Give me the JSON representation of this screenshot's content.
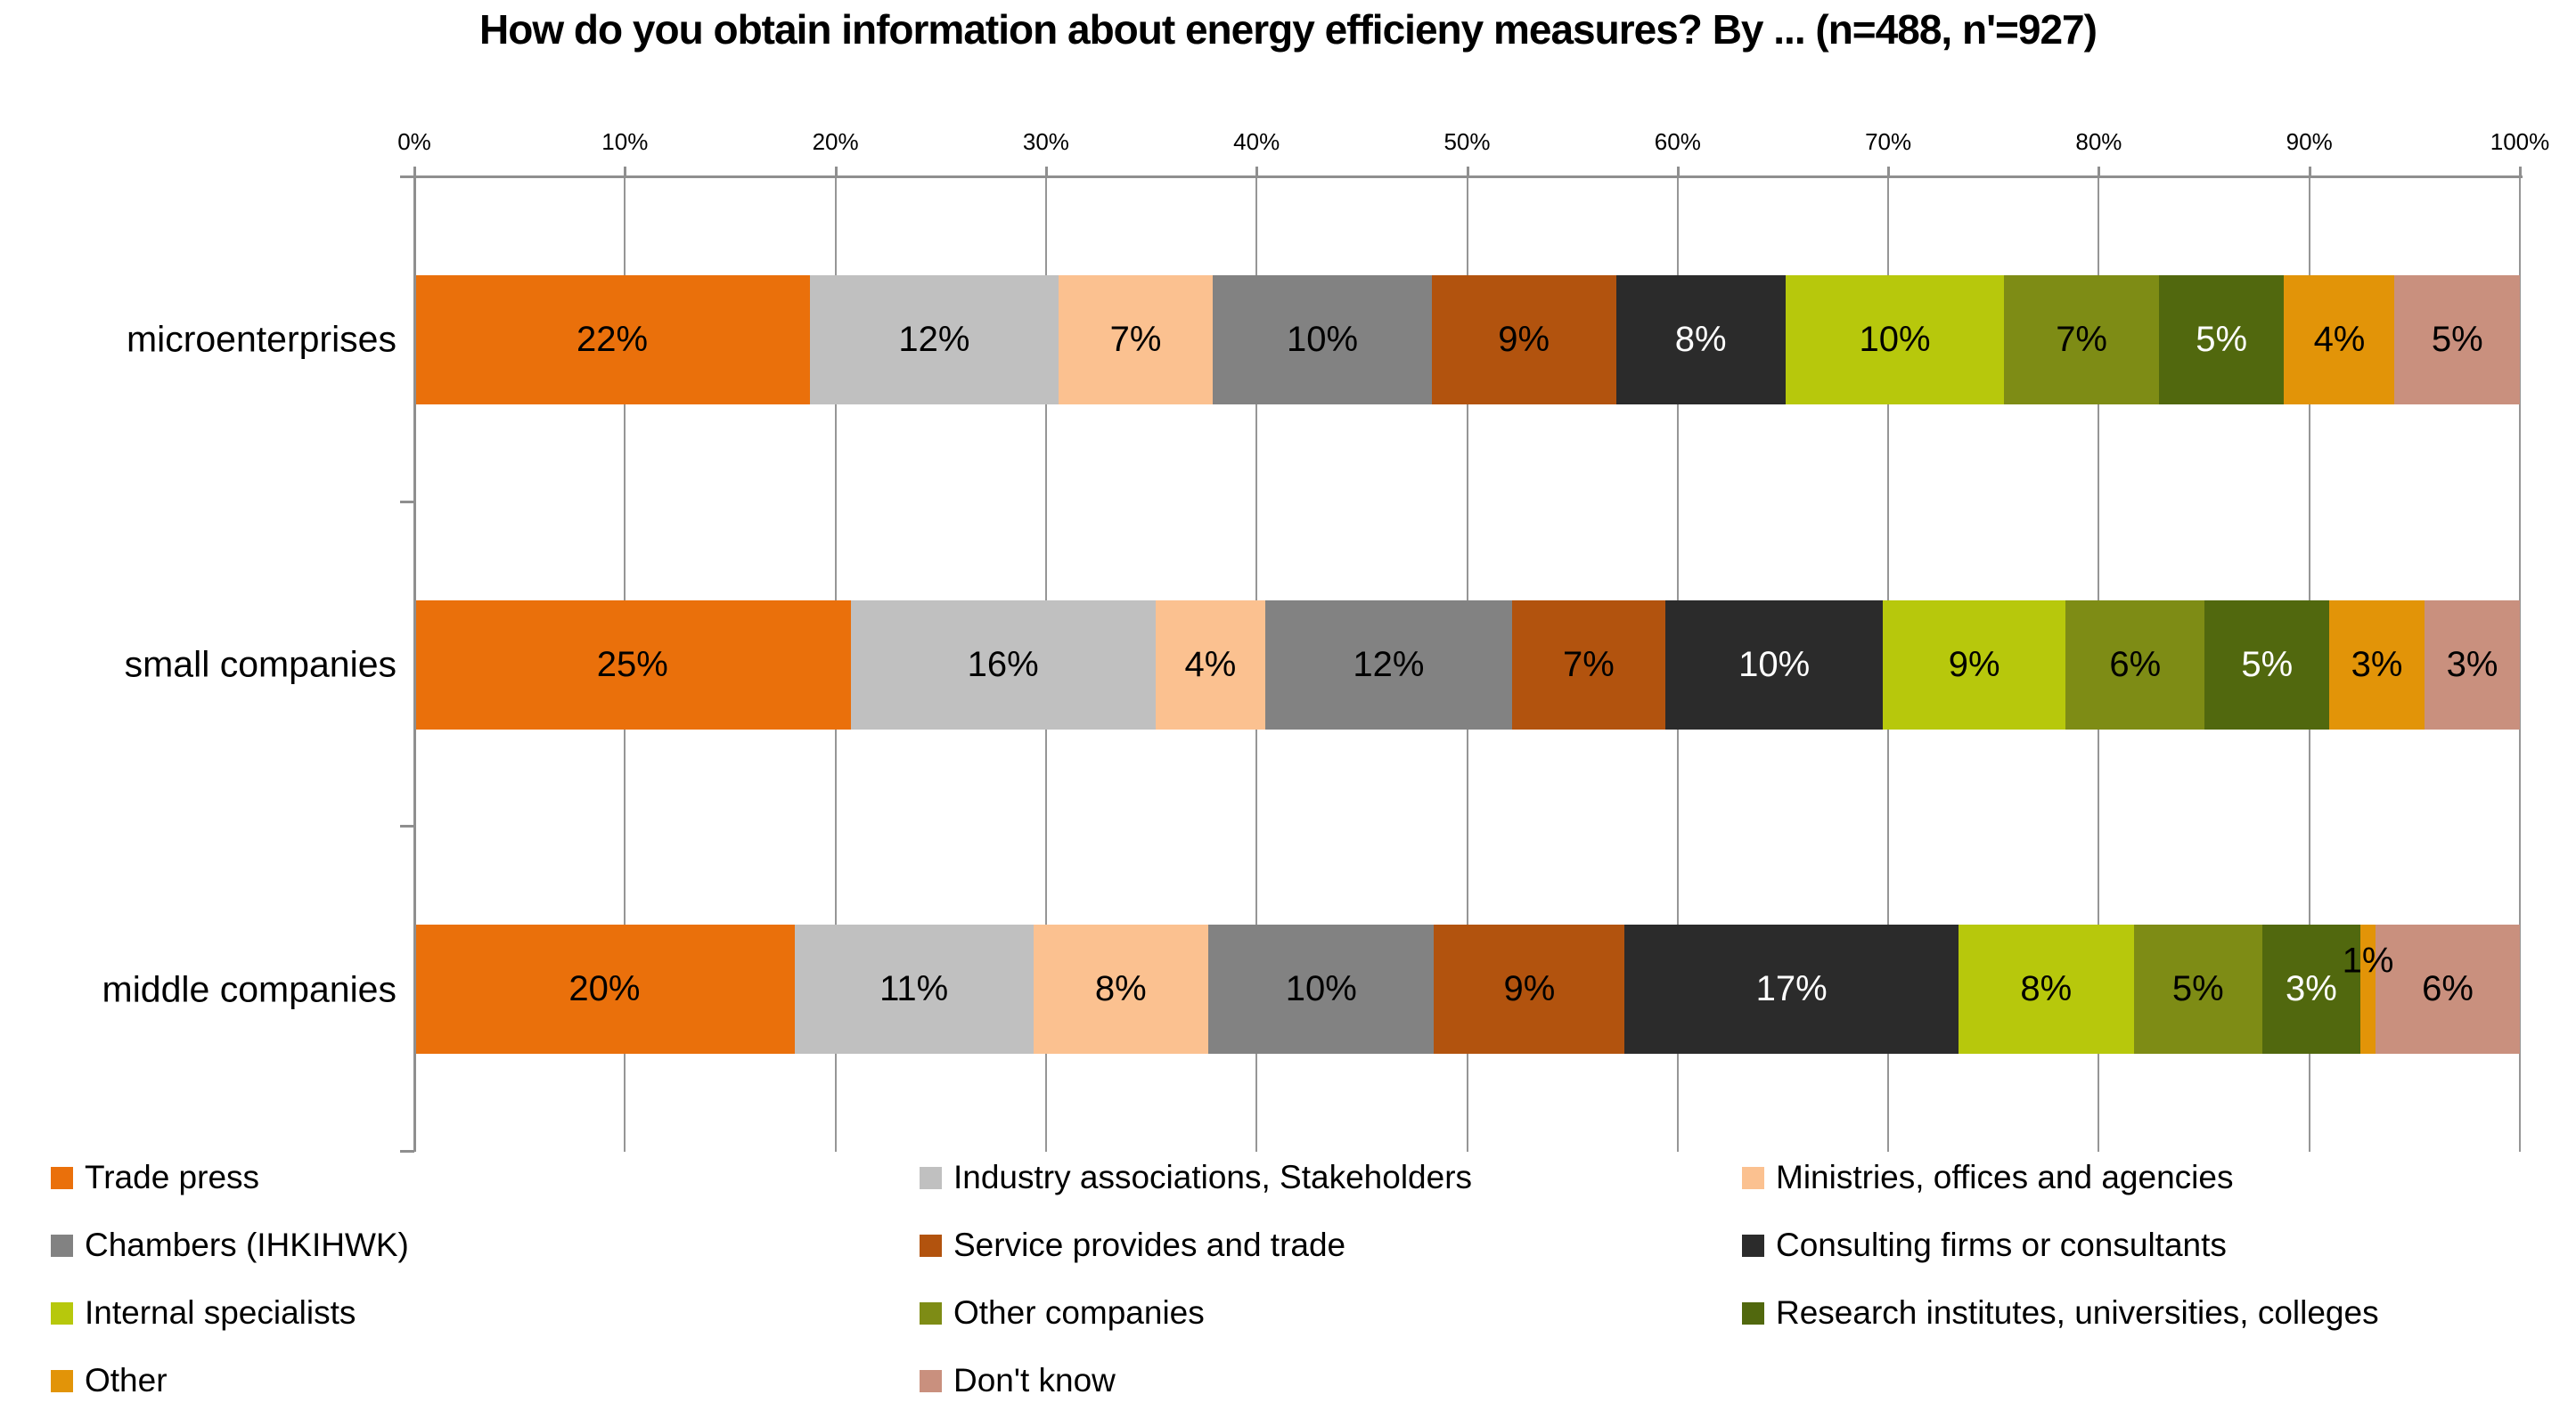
{
  "title": "How do you obtain information about energy efficieny measures? By ... (n=488, n'=927)",
  "chart_data": {
    "type": "bar",
    "subtype": "100%-stacked-horizontal",
    "title": "How do you obtain information about energy efficieny measures? By ... (n=488, n'=927)",
    "categories": [
      "microenterprises",
      "small companies",
      "middle companies"
    ],
    "x_axis": {
      "position": "top",
      "range": [
        0,
        100
      ],
      "tick_labels": [
        "0%",
        "10%",
        "20%",
        "30%",
        "40%",
        "50%",
        "60%",
        "70%",
        "80%",
        "90%",
        "100%"
      ],
      "grid": true
    },
    "value_suffix": "%",
    "series": [
      {
        "name": "Trade press",
        "color": "#EA700B",
        "label_color": "black",
        "values": [
          22,
          25,
          20
        ]
      },
      {
        "name": "Industry associations, Stakeholders",
        "color": "#C0C0C0",
        "label_color": "black",
        "values": [
          12,
          16,
          11
        ]
      },
      {
        "name": "Ministries, offices and agencies",
        "color": "#FBC190",
        "label_color": "black",
        "values": [
          7,
          4,
          8
        ]
      },
      {
        "name": "Chambers (IHKIHWK)",
        "color": "#828282",
        "label_color": "black",
        "values": [
          10,
          12,
          10
        ]
      },
      {
        "name": "Service provides and trade",
        "color": "#B2530E",
        "label_color": "black",
        "values": [
          9,
          7,
          9
        ]
      },
      {
        "name": "Consulting firms or consultants",
        "color": "#2B2B2B",
        "label_color": "white",
        "values": [
          8,
          10,
          17
        ]
      },
      {
        "name": "Internal specialists",
        "color": "#B7C80C",
        "label_color": "black",
        "values": [
          10,
          9,
          8
        ]
      },
      {
        "name": "Other companies",
        "color": "#7E8C15",
        "label_color": "black",
        "values": [
          7,
          6,
          5
        ]
      },
      {
        "name": "Research institutes, universities, colleges",
        "color": "#51680E",
        "label_color": "white",
        "values": [
          5,
          5,
          3
        ]
      },
      {
        "name": "Other",
        "color": "#E29408",
        "label_color": "black",
        "values": [
          4,
          3,
          1
        ]
      },
      {
        "name": "Don't know",
        "color": "#C9907E",
        "label_color": "black",
        "values": [
          5,
          3,
          6
        ]
      }
    ],
    "legend_position": "bottom"
  }
}
